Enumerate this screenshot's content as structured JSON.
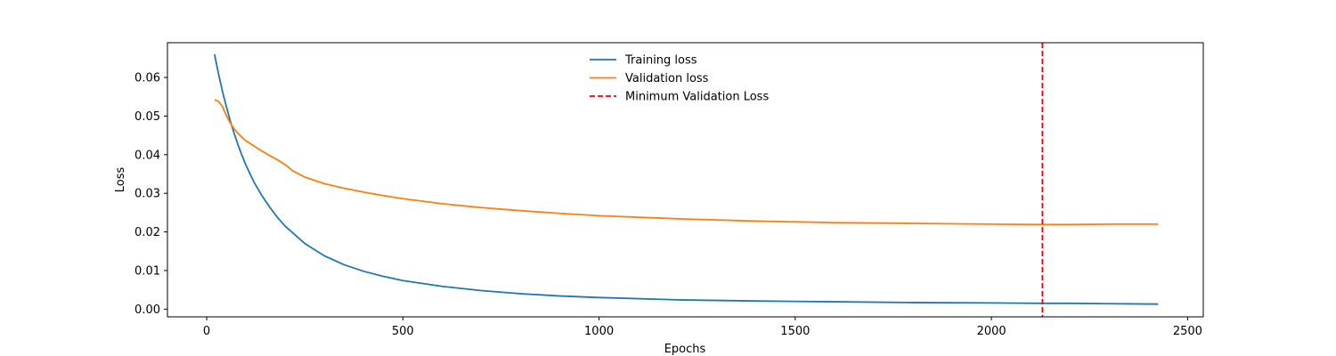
{
  "chart_data": {
    "type": "line",
    "title": "",
    "xlabel": "Epochs",
    "ylabel": "Loss",
    "xlim": [
      -100,
      2540
    ],
    "ylim": [
      -0.002,
      0.069
    ],
    "xticks": [
      0,
      500,
      1000,
      1500,
      2000,
      2500
    ],
    "xtick_labels": [
      "0",
      "500",
      "1000",
      "1500",
      "2000",
      "2500"
    ],
    "yticks": [
      0.0,
      0.01,
      0.02,
      0.03,
      0.04,
      0.05,
      0.06
    ],
    "ytick_labels": [
      "0.00",
      "0.01",
      "0.02",
      "0.03",
      "0.04",
      "0.05",
      "0.06"
    ],
    "grid": false,
    "legend_position": "top-center",
    "series": [
      {
        "name": "Training loss",
        "color": "#1f77b4",
        "style": "solid",
        "x": [
          20,
          30,
          40,
          50,
          60,
          70,
          80,
          90,
          100,
          120,
          140,
          160,
          180,
          200,
          250,
          300,
          350,
          400,
          450,
          500,
          600,
          700,
          800,
          900,
          1000,
          1200,
          1400,
          1600,
          1800,
          2000,
          2130,
          2200,
          2300,
          2425
        ],
        "y": [
          0.066,
          0.061,
          0.0565,
          0.0525,
          0.0488,
          0.0455,
          0.0425,
          0.0398,
          0.0373,
          0.033,
          0.0295,
          0.0265,
          0.0238,
          0.0215,
          0.017,
          0.0138,
          0.0115,
          0.0098,
          0.0085,
          0.0074,
          0.0059,
          0.0048,
          0.004,
          0.0034,
          0.003,
          0.0024,
          0.0021,
          0.0019,
          0.0017,
          0.0016,
          0.0015,
          0.0015,
          0.0014,
          0.0013
        ]
      },
      {
        "name": "Validation loss",
        "color": "#ff7f0e",
        "style": "solid",
        "x": [
          20,
          30,
          40,
          50,
          60,
          70,
          80,
          90,
          100,
          120,
          140,
          160,
          180,
          200,
          220,
          250,
          300,
          350,
          400,
          450,
          500,
          600,
          700,
          800,
          900,
          1000,
          1200,
          1400,
          1600,
          1800,
          2000,
          2130,
          2200,
          2300,
          2425
        ],
        "y": [
          0.0542,
          0.0538,
          0.0525,
          0.0502,
          0.0482,
          0.0467,
          0.0455,
          0.0445,
          0.0436,
          0.0423,
          0.041,
          0.0398,
          0.0387,
          0.0374,
          0.0358,
          0.0342,
          0.0325,
          0.0313,
          0.0303,
          0.0294,
          0.0286,
          0.0273,
          0.0263,
          0.0255,
          0.0248,
          0.0242,
          0.0234,
          0.0228,
          0.0224,
          0.0222,
          0.022,
          0.0219,
          0.0219,
          0.022,
          0.022
        ]
      }
    ],
    "vlines": [
      {
        "name": "Minimum Validation Loss",
        "x": 2130,
        "color": "#ff0000",
        "style": "dashed"
      }
    ]
  }
}
